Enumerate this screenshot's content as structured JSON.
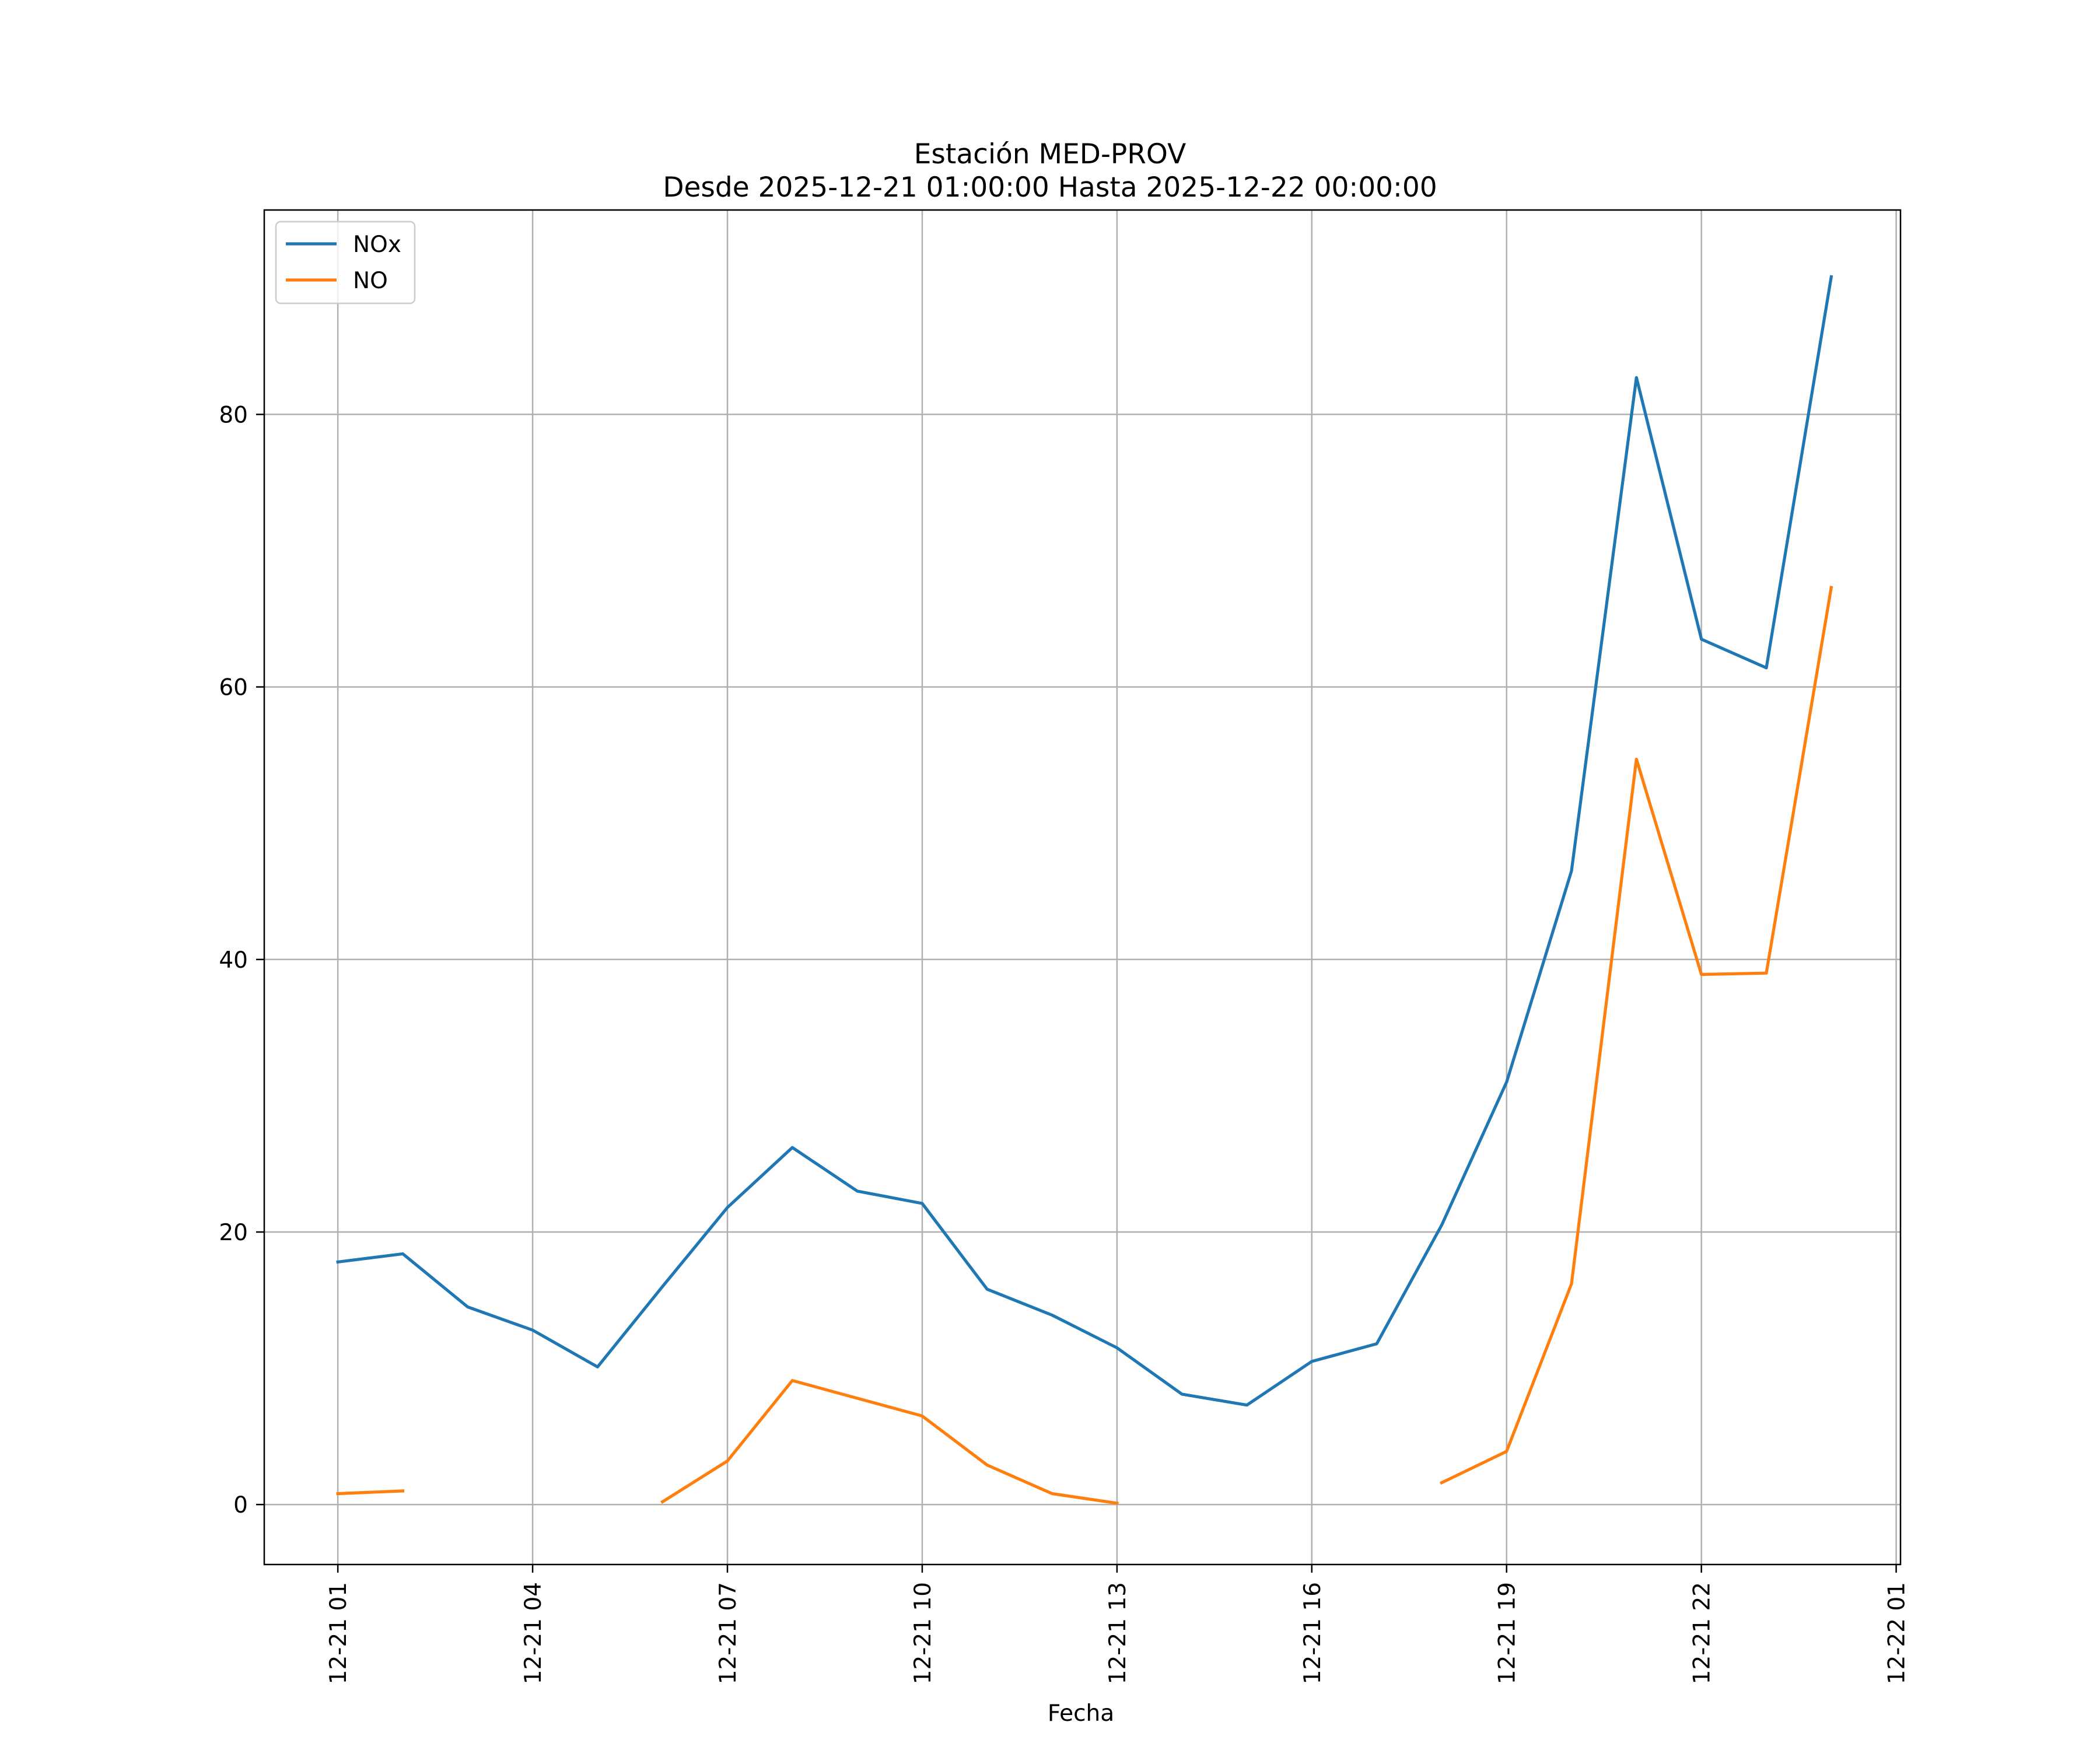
{
  "chart_data": {
    "type": "line",
    "title": "Estación MED-PROV",
    "subtitle": "Desde 2025-12-21 01:00:00 Hasta 2025-12-22 00:00:00",
    "xlabel": "Fecha",
    "ylabel": "",
    "x": [
      "2025-12-21 01:00",
      "2025-12-21 02:00",
      "2025-12-21 03:00",
      "2025-12-21 04:00",
      "2025-12-21 05:00",
      "2025-12-21 06:00",
      "2025-12-21 07:00",
      "2025-12-21 08:00",
      "2025-12-21 09:00",
      "2025-12-21 10:00",
      "2025-12-21 11:00",
      "2025-12-21 12:00",
      "2025-12-21 13:00",
      "2025-12-21 14:00",
      "2025-12-21 15:00",
      "2025-12-21 16:00",
      "2025-12-21 17:00",
      "2025-12-21 18:00",
      "2025-12-21 19:00",
      "2025-12-21 20:00",
      "2025-12-21 21:00",
      "2025-12-21 22:00",
      "2025-12-21 23:00",
      "2025-12-22 00:00"
    ],
    "series": [
      {
        "name": "NOx",
        "color": "#1f77b4",
        "values": [
          17.8,
          18.4,
          14.5,
          12.8,
          10.1,
          16.0,
          21.8,
          26.2,
          23.0,
          22.1,
          15.8,
          13.9,
          11.5,
          8.1,
          7.3,
          10.5,
          11.8,
          20.5,
          31.0,
          46.5,
          82.7,
          63.5,
          61.4,
          90.1
        ]
      },
      {
        "name": "NO",
        "color": "#ff7f0e",
        "values": [
          0.8,
          1.0,
          null,
          null,
          null,
          0.2,
          3.2,
          9.1,
          7.8,
          6.5,
          2.9,
          0.8,
          0.1,
          null,
          null,
          null,
          null,
          1.6,
          3.9,
          16.2,
          54.7,
          38.9,
          39.0,
          67.3
        ]
      }
    ],
    "xticks": [
      {
        "x": "2025-12-21 01:00",
        "label": "12-21 01"
      },
      {
        "x": "2025-12-21 04:00",
        "label": "12-21 04"
      },
      {
        "x": "2025-12-21 07:00",
        "label": "12-21 07"
      },
      {
        "x": "2025-12-21 10:00",
        "label": "12-21 10"
      },
      {
        "x": "2025-12-21 13:00",
        "label": "12-21 13"
      },
      {
        "x": "2025-12-21 16:00",
        "label": "12-21 16"
      },
      {
        "x": "2025-12-21 19:00",
        "label": "12-21 19"
      },
      {
        "x": "2025-12-21 22:00",
        "label": "12-21 22"
      },
      {
        "x": "2025-12-22 01:00",
        "label": "12-22 01"
      }
    ],
    "yticks": [
      0,
      20,
      40,
      60,
      80
    ],
    "xlim": [
      "2025-12-20 23:52",
      "2025-12-22 01:04"
    ],
    "ylim": [
      -4.4,
      95.0
    ],
    "grid": true,
    "legend_position": "upper-left"
  }
}
